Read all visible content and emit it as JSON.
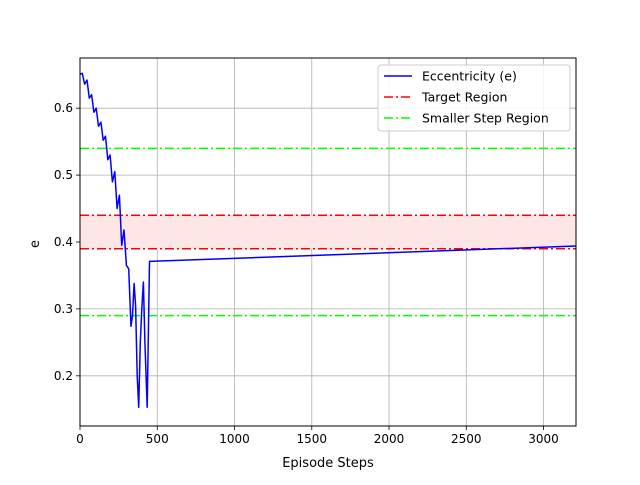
{
  "chart_data": {
    "type": "line",
    "xlabel": "Episode Steps",
    "ylabel": "e",
    "xlim": [
      0,
      3210
    ],
    "ylim": [
      0.125,
      0.675
    ],
    "x_ticks": [
      0,
      500,
      1000,
      1500,
      2000,
      2500,
      3000
    ],
    "y_ticks": [
      0.2,
      0.3,
      0.4,
      0.5,
      0.6
    ],
    "grid": true,
    "legend_position": "top-right",
    "series": [
      {
        "name": "Eccentricity (e)",
        "color": "#0000ff",
        "style": "solid",
        "x": [
          0,
          15,
          30,
          45,
          60,
          75,
          90,
          105,
          120,
          135,
          150,
          165,
          180,
          195,
          210,
          225,
          240,
          255,
          270,
          285,
          300,
          315,
          330,
          340,
          350,
          360,
          370,
          380,
          390,
          400,
          410,
          420,
          435,
          450,
          3210
        ],
        "y": [
          0.651,
          0.652,
          0.636,
          0.642,
          0.615,
          0.62,
          0.594,
          0.6,
          0.573,
          0.579,
          0.552,
          0.558,
          0.523,
          0.53,
          0.49,
          0.505,
          0.45,
          0.47,
          0.395,
          0.418,
          0.365,
          0.36,
          0.274,
          0.29,
          0.338,
          0.305,
          0.2,
          0.153,
          0.25,
          0.3,
          0.34,
          0.25,
          0.153,
          0.371,
          0.394
        ]
      }
    ],
    "reference_lines": [
      {
        "name": "Target Region",
        "color": "#ff0000",
        "style": "dashdot",
        "y": [
          0.39,
          0.44
        ]
      },
      {
        "name": "Smaller Step Region",
        "color": "#00ff00",
        "style": "dashdot",
        "y": [
          0.29,
          0.54
        ]
      }
    ],
    "shaded_band": {
      "y": [
        0.39,
        0.44
      ],
      "color": "#ffe6e6"
    }
  }
}
